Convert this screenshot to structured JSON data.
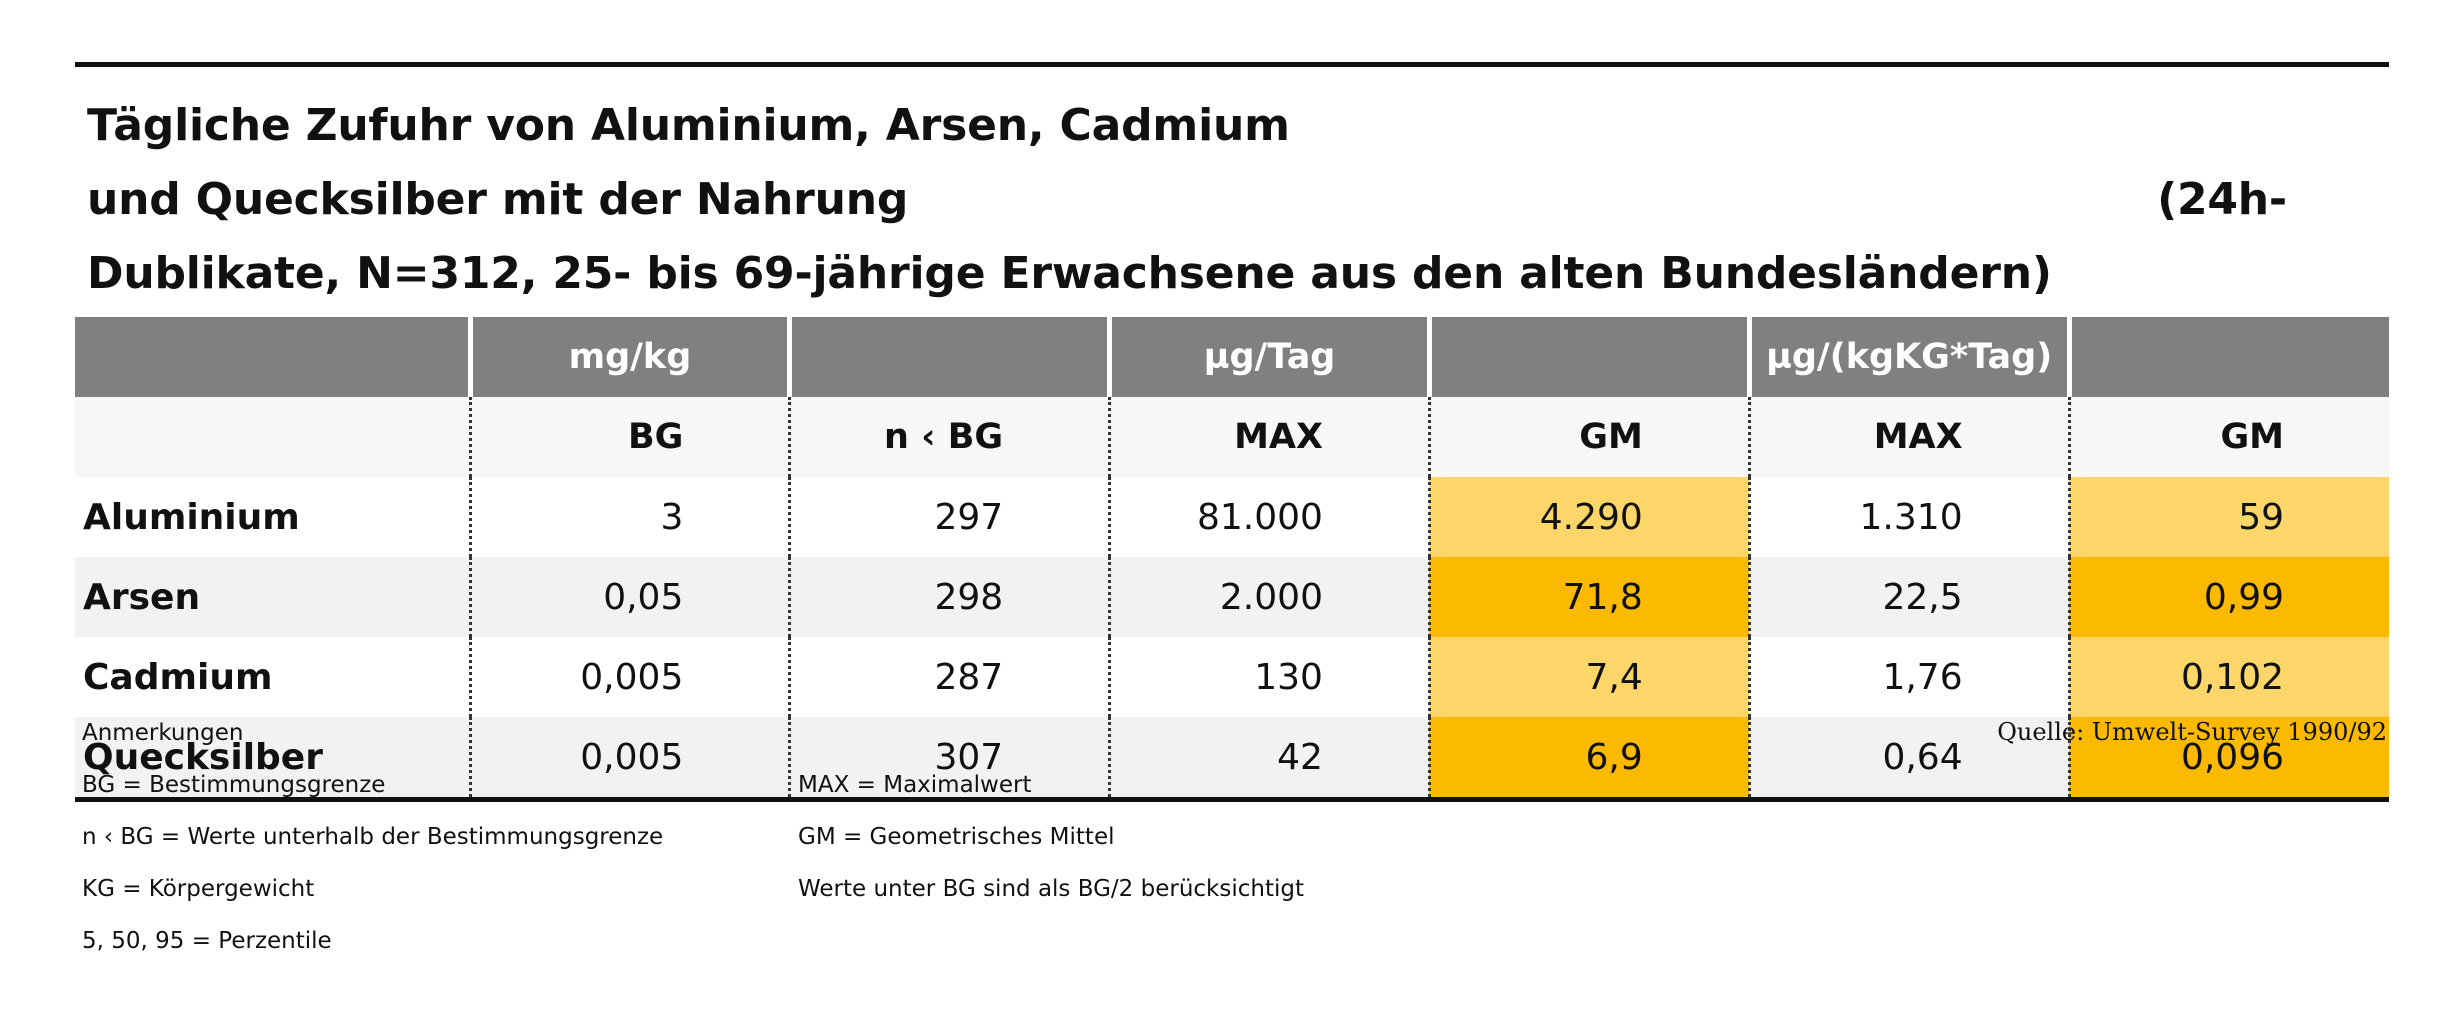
{
  "title": {
    "line1": "Tägliche Zufuhr von Aluminium, Arsen, Cadmium und Quecksilber mit der Nahrung",
    "line1_end": "(24h-",
    "line2": "Dublikate, N=312, 25- bis 69-jährige Erwachsene aus den alten Bundesländern)"
  },
  "table": {
    "group_headers": [
      "",
      "mg/kg",
      "",
      "µg/Tag",
      "",
      "µg/(kgKG*Tag)",
      ""
    ],
    "columns": [
      "",
      "BG",
      "n ‹ BG",
      "MAX",
      "GM",
      "MAX",
      "GM"
    ],
    "rows": [
      {
        "label": "Aluminium",
        "values": [
          "3",
          "297",
          "81.000",
          "4.290",
          "1.310",
          "59"
        ]
      },
      {
        "label": "Arsen",
        "values": [
          "0,05",
          "298",
          "2.000",
          "71,8",
          "22,5",
          "0,99"
        ]
      },
      {
        "label": "Cadmium",
        "values": [
          "0,005",
          "287",
          "130",
          "7,4",
          "1,76",
          "0,102"
        ]
      },
      {
        "label": "Quecksilber",
        "values": [
          "0,005",
          "307",
          "42",
          "6,9",
          "0,64",
          "0,096"
        ]
      }
    ]
  },
  "notes": {
    "heading": "Anmerkungen",
    "left": [
      "BG = Bestimmungsgrenze",
      "n ‹ BG = Werte unterhalb der Bestimmungsgrenze",
      "KG = Körpergewicht",
      "5, 50, 95 = Perzentile"
    ],
    "right": [
      "MAX = Maximalwert",
      "GM = Geometrisches Mittel",
      "Werte unter BG sind als BG/2 berücksichtigt"
    ]
  },
  "source": "Quelle: Umwelt-Survey 1990/92",
  "colors": {
    "header_gray": "#808080",
    "highlight_light": "#fdd669",
    "highlight_dark": "#fbba00"
  }
}
